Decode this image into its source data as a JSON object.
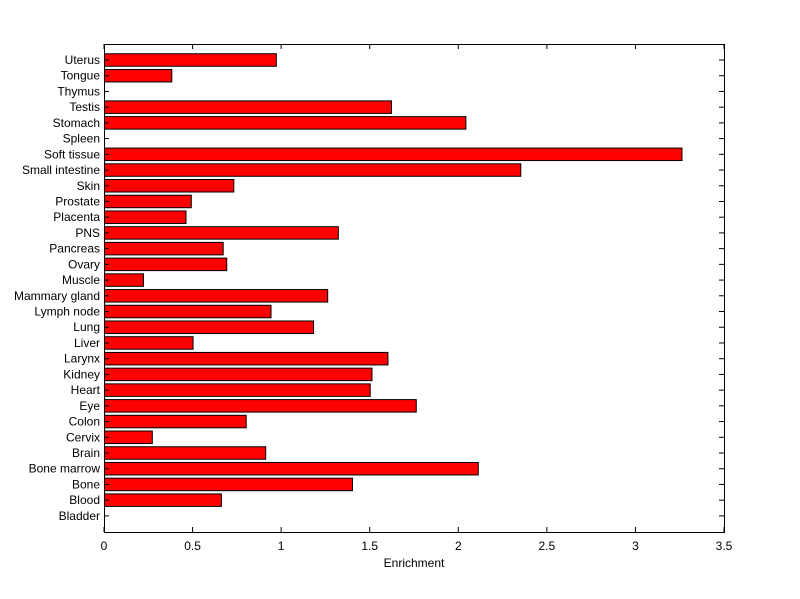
{
  "chart_data": {
    "type": "bar",
    "orientation": "horizontal",
    "categories": [
      "Uterus",
      "Tongue",
      "Thymus",
      "Testis",
      "Stomach",
      "Spleen",
      "Soft tissue",
      "Small intestine",
      "Skin",
      "Prostate",
      "Placenta",
      "PNS",
      "Pancreas",
      "Ovary",
      "Muscle",
      "Mammary gland",
      "Lymph node",
      "Lung",
      "Liver",
      "Larynx",
      "Kidney",
      "Heart",
      "Eye",
      "Colon",
      "Cervix",
      "Brain",
      "Bone marrow",
      "Bone",
      "Blood",
      "Bladder"
    ],
    "values": [
      0.97,
      0.38,
      0,
      1.62,
      2.04,
      0,
      3.26,
      2.35,
      0.73,
      0.49,
      0.46,
      1.32,
      0.67,
      0.69,
      0.22,
      1.26,
      0.94,
      1.18,
      0.5,
      1.6,
      1.51,
      1.5,
      1.76,
      0.8,
      0.27,
      0.91,
      2.11,
      1.4,
      0.66,
      0
    ],
    "xlabel": "Enrichment",
    "ylabel": "",
    "title": "",
    "xlim": [
      0,
      3.5
    ],
    "xticks": [
      "0",
      "0.5",
      "1",
      "1.5",
      "2",
      "2.5",
      "3",
      "3.5"
    ],
    "grid": false,
    "bar_color": "#ff0000",
    "edge_color": "#000000"
  }
}
